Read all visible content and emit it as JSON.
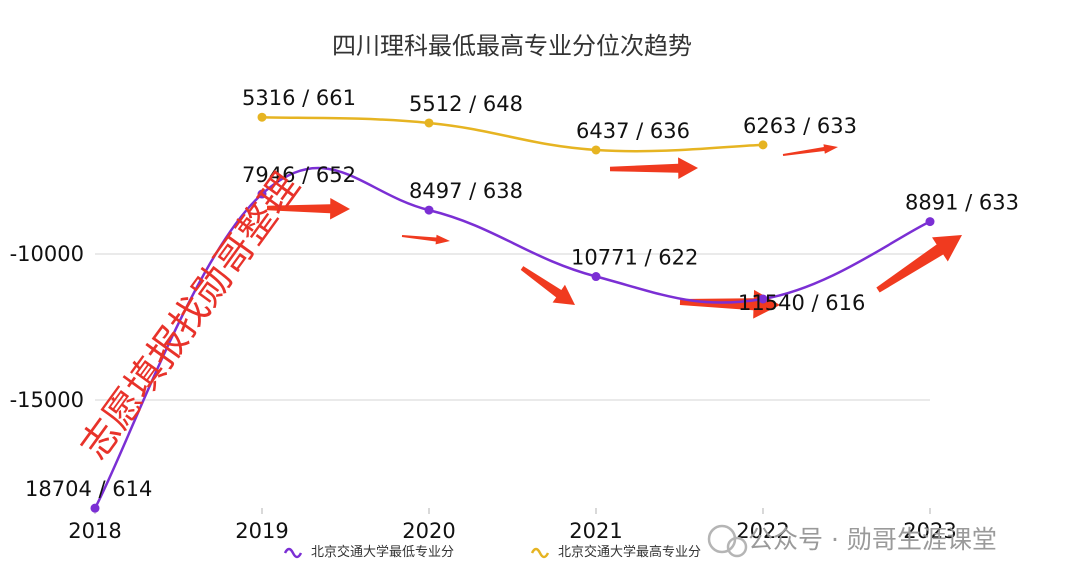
{
  "chart_data": {
    "type": "line",
    "title": "四川理科最低最高专业分位次趋势",
    "x": [
      "2018",
      "2019",
      "2020",
      "2021",
      "2022",
      "2023"
    ],
    "y_ticks": [
      "-10000",
      "-15000"
    ],
    "ylim": [
      -19000,
      -5000
    ],
    "grid": true,
    "legend_position": "bottom",
    "series": [
      {
        "name": "北京交通大学最低专业分",
        "color": "#7b2fd4",
        "values": [
          -18704,
          -7946,
          -8497,
          -10771,
          -11540,
          -8891
        ],
        "labels": [
          "18704 / 614",
          "7946 / 652",
          "8497 / 638",
          "10771 / 622",
          "11540 / 616",
          "8891 / 633"
        ]
      },
      {
        "name": "北京交通大学最高专业分",
        "color": "#e6b422",
        "values": [
          null,
          -5316,
          -5512,
          -6437,
          -6263,
          null
        ],
        "labels": [
          null,
          "5316 / 661",
          "5512 / 648",
          "6437 / 636",
          "6263 / 633",
          null
        ]
      }
    ]
  },
  "watermark": "志愿填报找勋哥整理",
  "footer": "公众号 · 勋哥生涯课堂",
  "colors": {
    "arrow": "#f03a1f",
    "grid": "#e3e3e3",
    "axis": "#cccccc"
  }
}
